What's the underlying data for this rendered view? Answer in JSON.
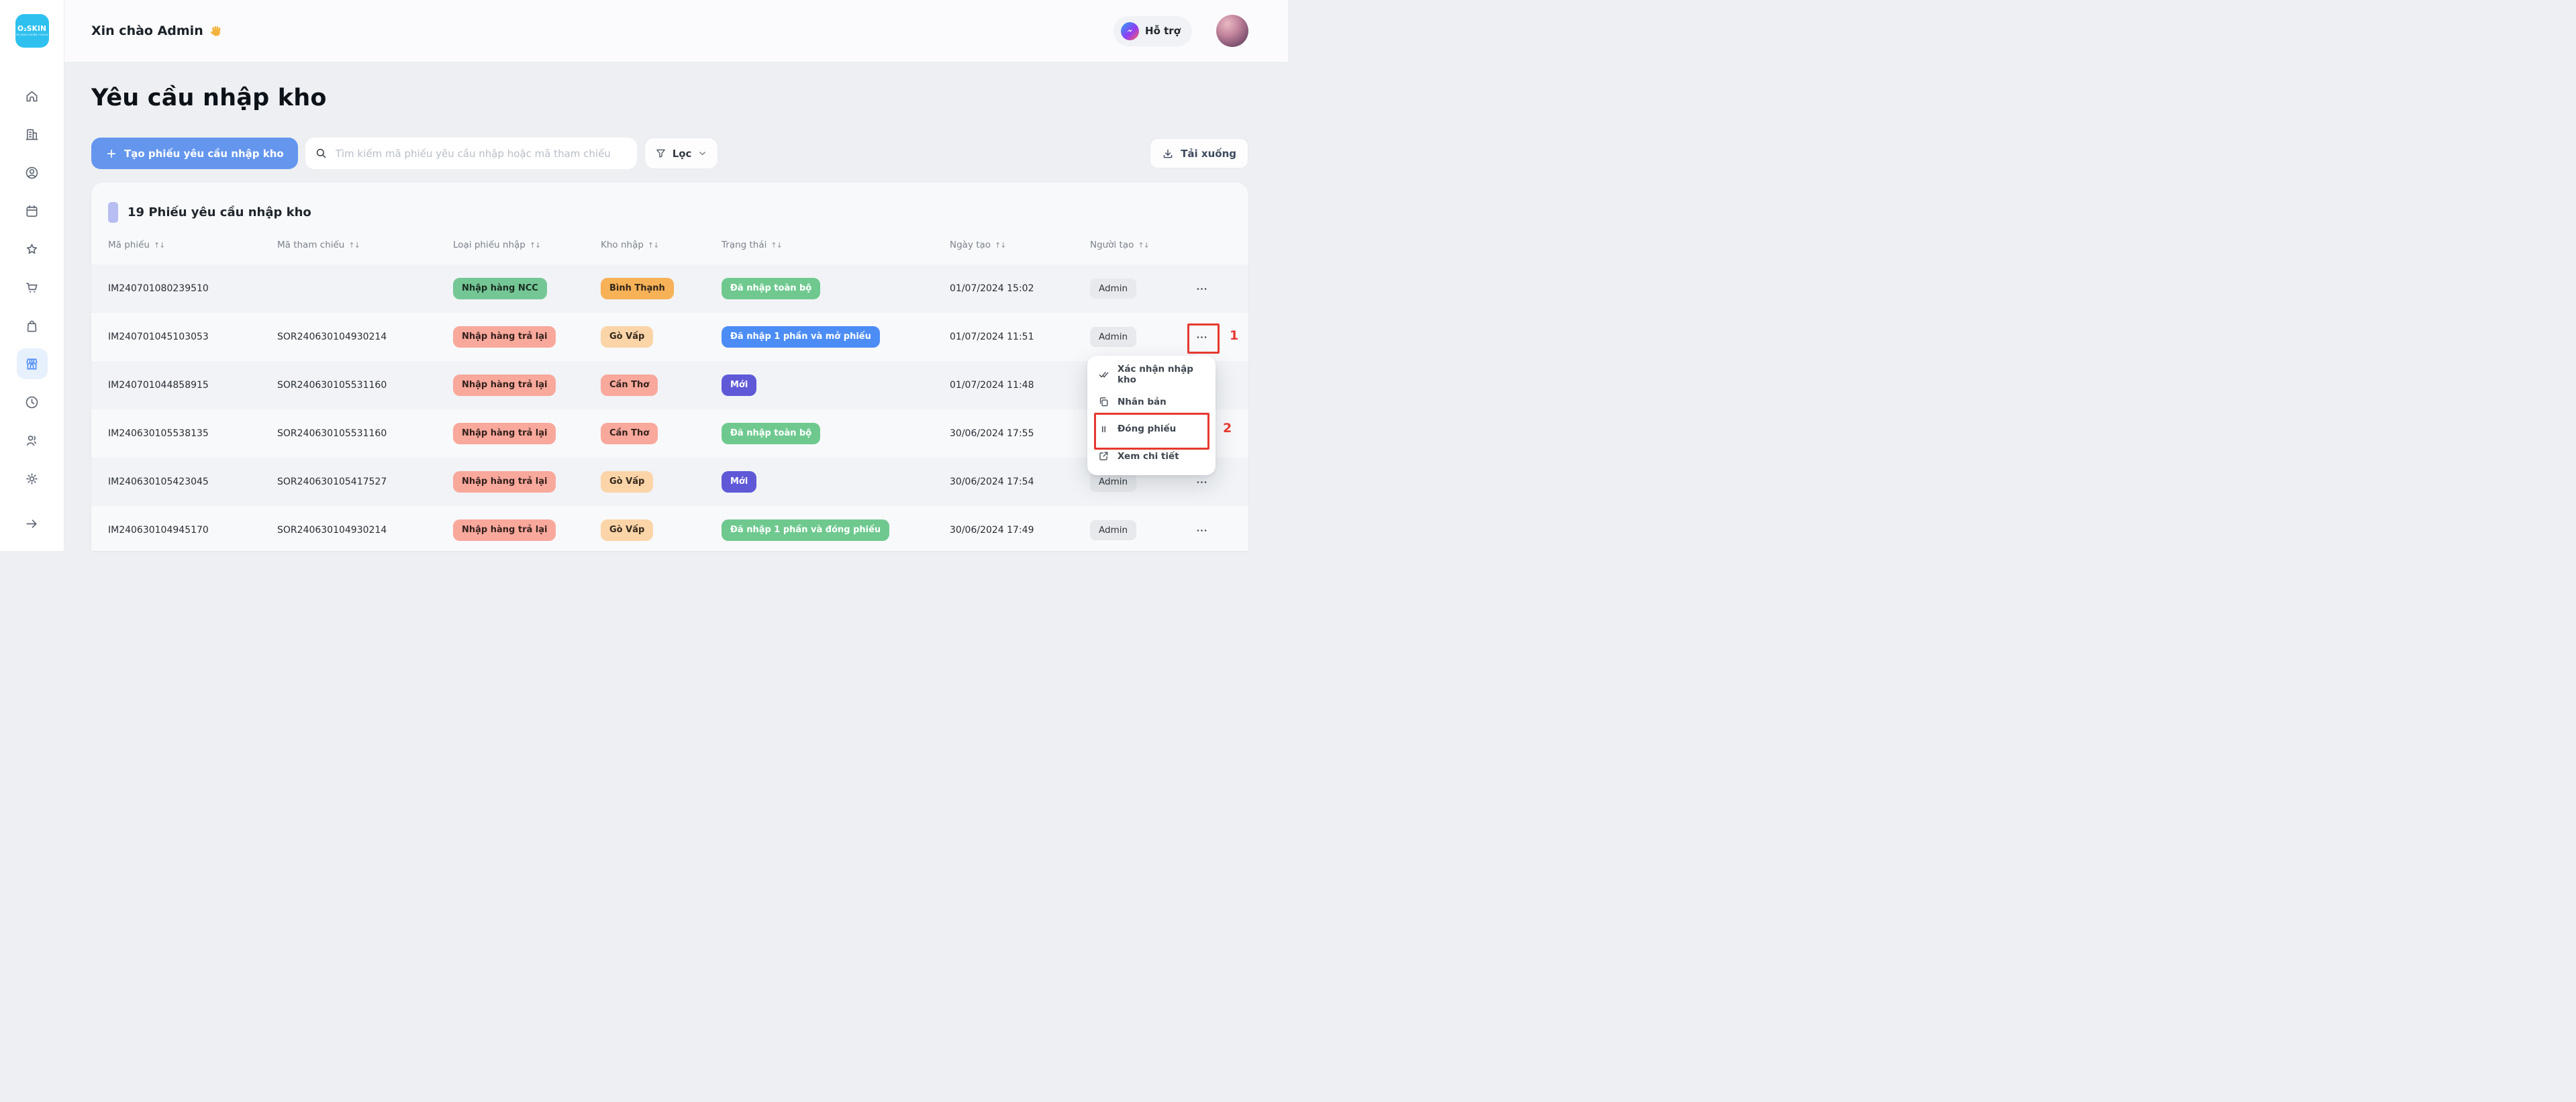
{
  "brand": {
    "name": "O₂SKIN",
    "tagline": "TRỊ MỤN CHUẨN Y KHOA",
    "logo_bg": "#2ec1ef"
  },
  "header": {
    "greeting": "Xin chào Admin",
    "wave_emoji": "👋",
    "support_label": "Hỗ trợ"
  },
  "sidebar": {
    "items": [
      {
        "name": "home",
        "icon": "home",
        "active": false
      },
      {
        "name": "company",
        "icon": "building",
        "active": false
      },
      {
        "name": "customers",
        "icon": "user-circle",
        "active": false
      },
      {
        "name": "calendar",
        "icon": "calendar",
        "active": false
      },
      {
        "name": "favorites",
        "icon": "star",
        "active": false
      },
      {
        "name": "orders",
        "icon": "shopping-cart",
        "active": false
      },
      {
        "name": "products",
        "icon": "shopping-bag",
        "active": false
      },
      {
        "name": "warehouse",
        "icon": "store",
        "active": true
      },
      {
        "name": "history",
        "icon": "clock",
        "active": false
      },
      {
        "name": "staff",
        "icon": "users",
        "active": false
      },
      {
        "name": "settings",
        "icon": "gear",
        "active": false
      }
    ],
    "footer_icon": "arrow-right"
  },
  "page": {
    "title": "Yêu cầu nhập kho"
  },
  "toolbar": {
    "create_button": "Tạo phiếu yêu cầu nhập kho",
    "search_placeholder": "Tìm kiếm mã phiếu yêu cầu nhập hoặc mã tham chiếu",
    "filter_label": "Lọc",
    "download_label": "Tải xuống"
  },
  "table": {
    "section_title": "19 Phiếu yêu cầu nhập kho",
    "sort_icon": "↑↓",
    "columns": [
      "Mã phiếu",
      "Mã tham chiếu",
      "Loại phiếu nhập",
      "Kho nhập",
      "Trạng thái",
      "Ngày tạo",
      "Người tạo"
    ],
    "rows": [
      {
        "code": "IM240701080239510",
        "ref": "",
        "type": {
          "label": "Nhập hàng NCC",
          "bg": "#74c795",
          "fg": "#1c2d22"
        },
        "warehouse": {
          "label": "Bình Thạnh",
          "bg": "#f7b156",
          "fg": "#33271a"
        },
        "status": {
          "label": "Đã nhập toàn bộ",
          "bg": "#6fc98f",
          "fg": "#ffffff"
        },
        "created_at": "01/07/2024 15:02",
        "creator": "Admin"
      },
      {
        "code": "IM240701045103053",
        "ref": "SOR240630104930214",
        "type": {
          "label": "Nhập hàng trả lại",
          "bg": "#f9a89c",
          "fg": "#33211d"
        },
        "warehouse": {
          "label": "Gò Vấp",
          "bg": "#fbd4a8",
          "fg": "#33281c"
        },
        "status": {
          "label": "Đã nhập 1 phần và mở phiếu",
          "bg": "#4c8df5",
          "fg": "#ffffff"
        },
        "created_at": "01/07/2024 11:51",
        "creator": "Admin"
      },
      {
        "code": "IM240701044858915",
        "ref": "SOR240630105531160",
        "type": {
          "label": "Nhập hàng trả lại",
          "bg": "#f9a89c",
          "fg": "#33211d"
        },
        "warehouse": {
          "label": "Cần Thơ",
          "bg": "#f9a89c",
          "fg": "#33211d"
        },
        "status": {
          "label": "Mới",
          "bg": "#5f59d8",
          "fg": "#ffffff"
        },
        "created_at": "01/07/2024 11:48",
        "creator": "Admin"
      },
      {
        "code": "IM240630105538135",
        "ref": "SOR240630105531160",
        "type": {
          "label": "Nhập hàng trả lại",
          "bg": "#f9a89c",
          "fg": "#33211d"
        },
        "warehouse": {
          "label": "Cần Thơ",
          "bg": "#f9a89c",
          "fg": "#33211d"
        },
        "status": {
          "label": "Đã nhập toàn bộ",
          "bg": "#6fc98f",
          "fg": "#ffffff"
        },
        "created_at": "30/06/2024 17:55",
        "creator": "Admin"
      },
      {
        "code": "IM240630105423045",
        "ref": "SOR240630105417527",
        "type": {
          "label": "Nhập hàng trả lại",
          "bg": "#f9a89c",
          "fg": "#33211d"
        },
        "warehouse": {
          "label": "Gò Vấp",
          "bg": "#fbd4a8",
          "fg": "#33281c"
        },
        "status": {
          "label": "Mới",
          "bg": "#5f59d8",
          "fg": "#ffffff"
        },
        "created_at": "30/06/2024 17:54",
        "creator": "Admin"
      },
      {
        "code": "IM240630104945170",
        "ref": "SOR240630104930214",
        "type": {
          "label": "Nhập hàng trả lại",
          "bg": "#f9a89c",
          "fg": "#33211d"
        },
        "warehouse": {
          "label": "Gò Vấp",
          "bg": "#fbd4a8",
          "fg": "#33281c"
        },
        "status": {
          "label": "Đã nhập 1 phần và đóng phiếu",
          "bg": "#6fc98f",
          "fg": "#ffffff"
        },
        "created_at": "30/06/2024 17:49",
        "creator": "Admin"
      }
    ]
  },
  "context_menu": {
    "items": [
      {
        "name": "confirm-import",
        "icon": "double-check",
        "label": "Xác nhận nhập kho"
      },
      {
        "name": "duplicate",
        "icon": "copy",
        "label": "Nhân bản"
      },
      {
        "name": "close-receipt",
        "icon": "pause",
        "label": "Đóng phiếu"
      },
      {
        "name": "view-details",
        "icon": "external-link",
        "label": "Xem chi tiết"
      }
    ]
  },
  "annotations": {
    "step1": "1",
    "step2": "2",
    "color": "#e6392f"
  }
}
